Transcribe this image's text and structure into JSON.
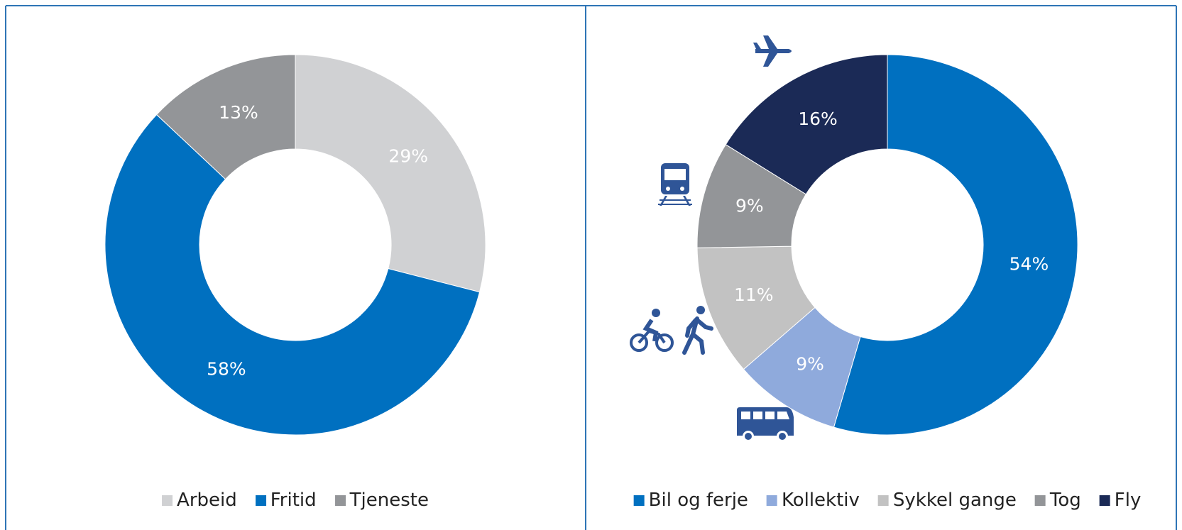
{
  "chart_data": [
    {
      "type": "pie",
      "donut": true,
      "categories": [
        "Arbeid",
        "Fritid",
        "Tjeneste"
      ],
      "values": [
        29,
        58,
        13
      ],
      "value_labels": [
        "29%",
        "58%",
        "13%"
      ],
      "colors": [
        "#d0d1d3",
        "#0070c0",
        "#939598"
      ],
      "legend": "bottom"
    },
    {
      "type": "pie",
      "donut": true,
      "categories": [
        "Bil og ferje",
        "Kollektiv",
        "Sykkel gange",
        "Tog",
        "Fly"
      ],
      "values": [
        54,
        9,
        11,
        9,
        16
      ],
      "value_labels": [
        "54%",
        "9%",
        "11%",
        "9%",
        "16%"
      ],
      "colors": [
        "#0070c0",
        "#8faadc",
        "#c2c2c2",
        "#939598",
        "#1b2a56"
      ],
      "legend": "bottom"
    }
  ]
}
